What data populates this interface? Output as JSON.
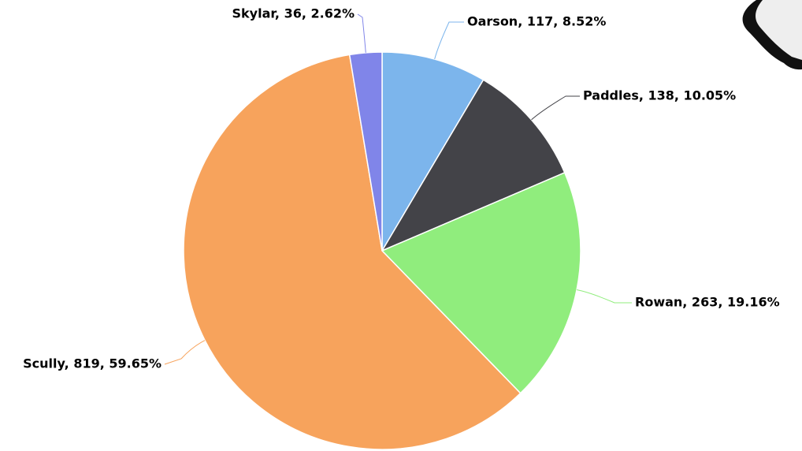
{
  "chart_data": {
    "type": "pie",
    "values": [
      117,
      138,
      263,
      819,
      36
    ],
    "value_labels": [
      "Oarson, 117, 8.52%",
      "Paddles, 138, 10.05%",
      "Rowan, 263, 19.16%",
      "Scully, 819, 59.65%",
      "Skylar, 36, 2.62%"
    ],
    "colors": [
      "#7cb5ec",
      "#434348",
      "#90ed7d",
      "#f7a35c",
      "#8085e9"
    ]
  }
}
